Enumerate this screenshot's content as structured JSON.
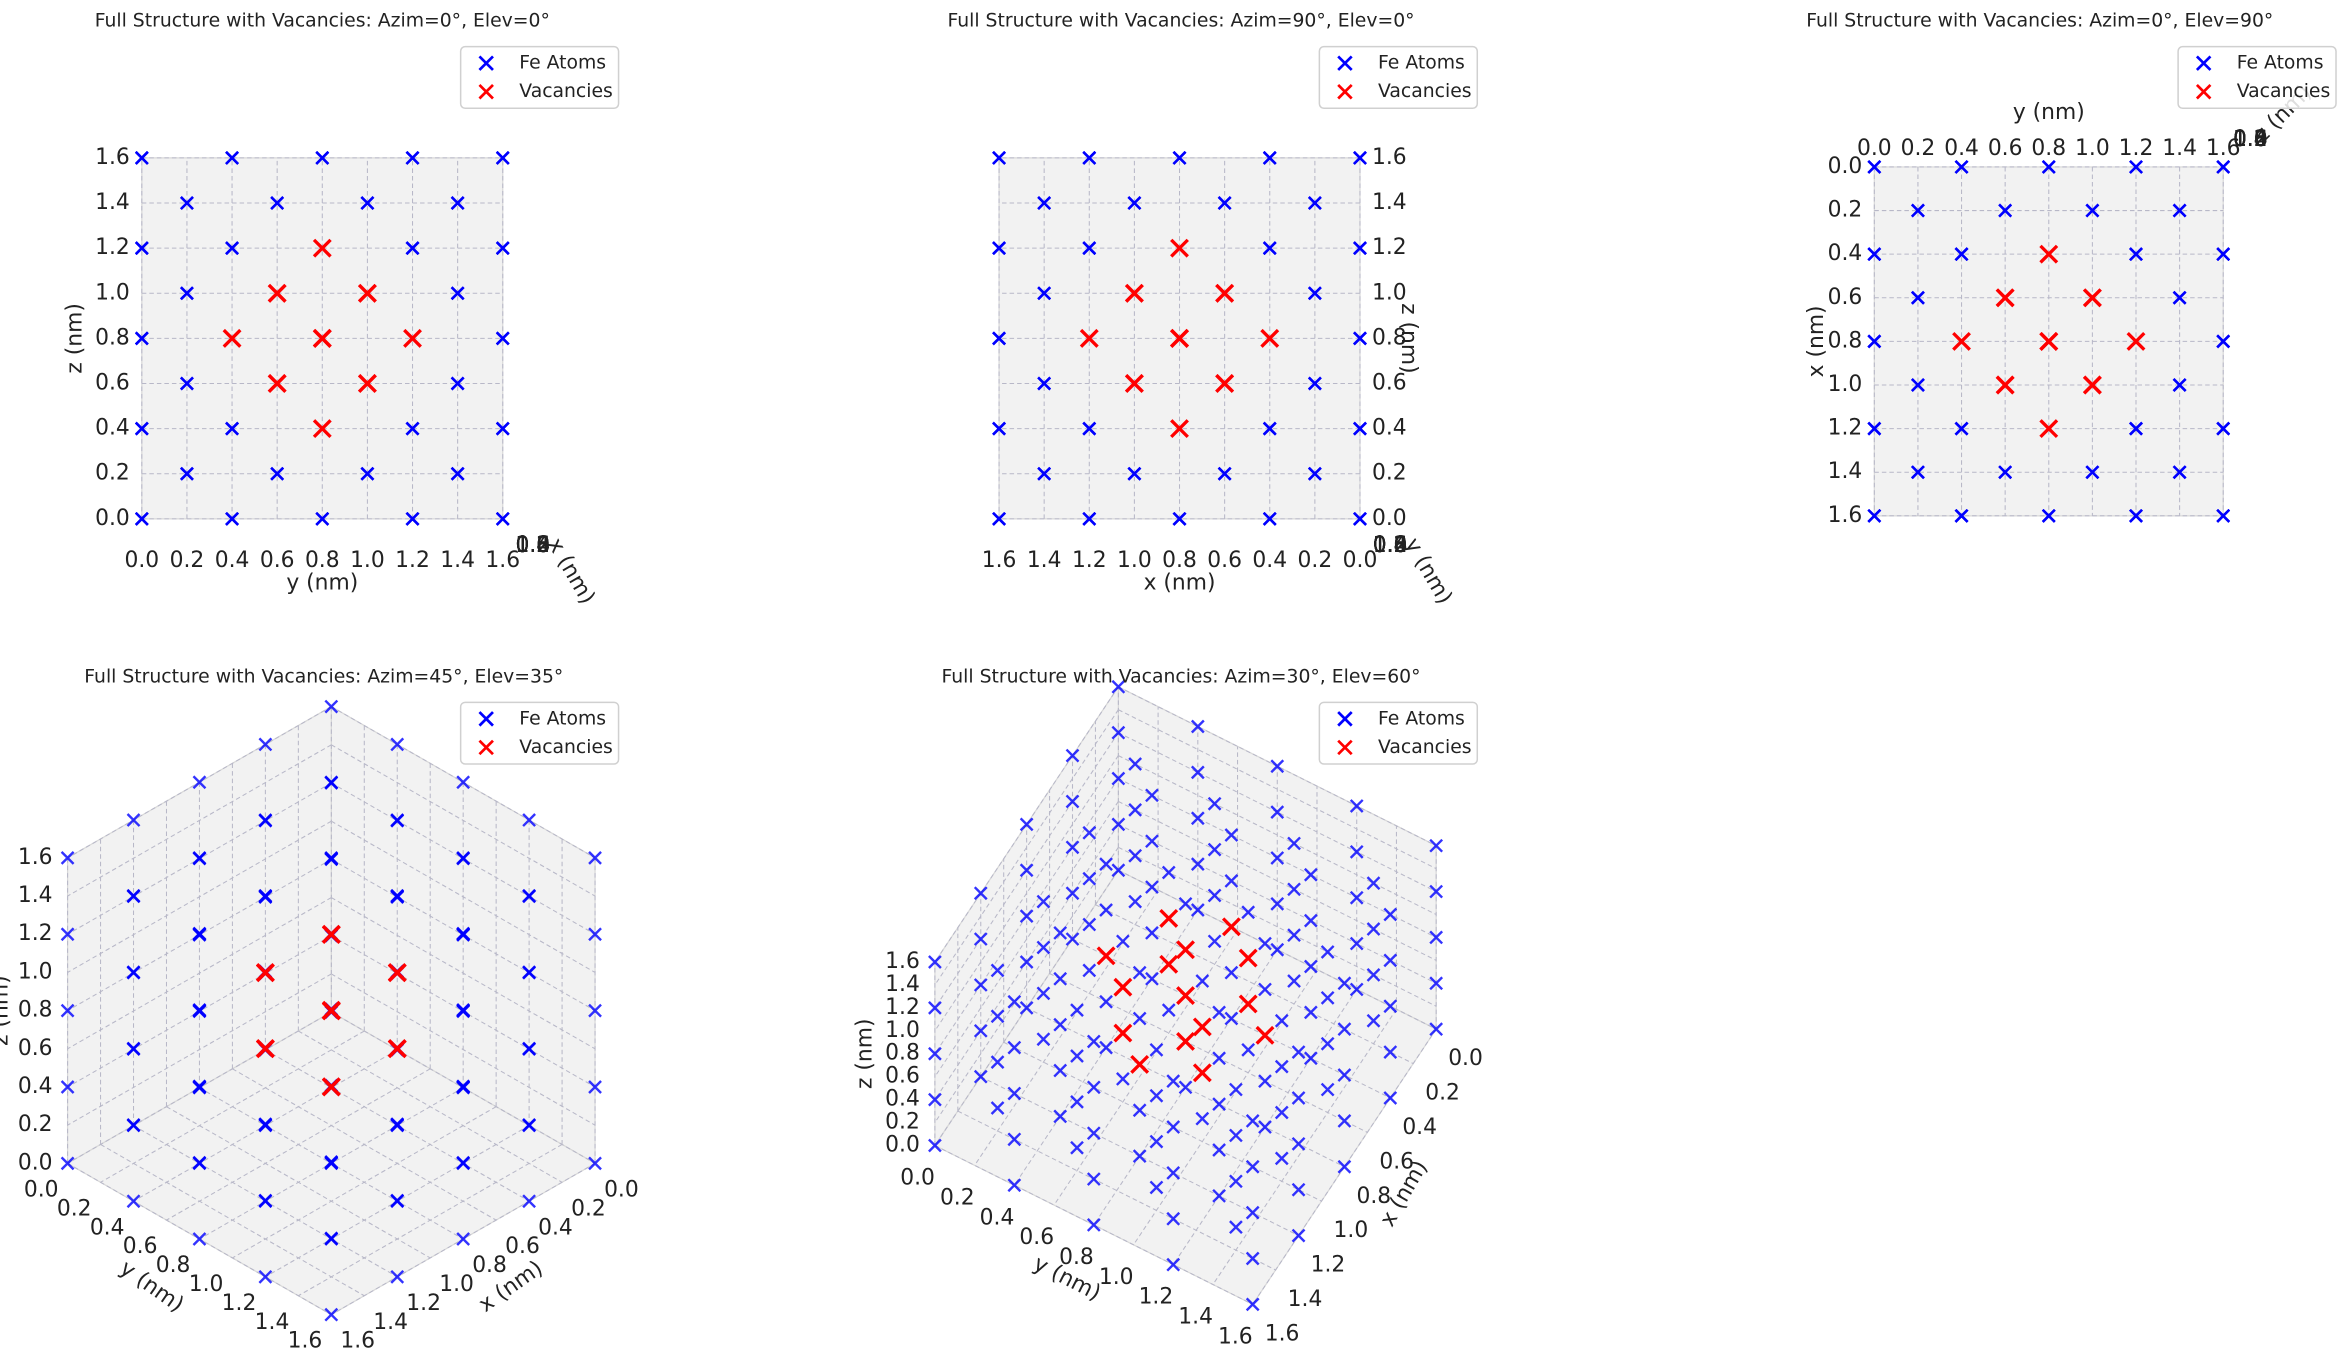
{
  "series": [
    {
      "name": "Fe Atoms",
      "color": "#0000ff",
      "points": [
        [
          0,
          0,
          0
        ],
        [
          0,
          0,
          0.4
        ],
        [
          0,
          0,
          0.8
        ],
        [
          0,
          0,
          1.2
        ],
        [
          0,
          0,
          1.6
        ],
        [
          0,
          0.4,
          0
        ],
        [
          0,
          0.4,
          0.4
        ],
        [
          0,
          0.4,
          0.8
        ],
        [
          0,
          0.4,
          1.2
        ],
        [
          0,
          0.4,
          1.6
        ],
        [
          0,
          0.8,
          0
        ],
        [
          0,
          0.8,
          0.4
        ],
        [
          0,
          0.8,
          0.8
        ],
        [
          0,
          0.8,
          1.2
        ],
        [
          0,
          0.8,
          1.6
        ],
        [
          0,
          1.2,
          0
        ],
        [
          0,
          1.2,
          0.4
        ],
        [
          0,
          1.2,
          0.8
        ],
        [
          0,
          1.2,
          1.2
        ],
        [
          0,
          1.2,
          1.6
        ],
        [
          0,
          1.6,
          0
        ],
        [
          0,
          1.6,
          0.4
        ],
        [
          0,
          1.6,
          0.8
        ],
        [
          0,
          1.6,
          1.2
        ],
        [
          0,
          1.6,
          1.6
        ],
        [
          0.4,
          0,
          0
        ],
        [
          0.4,
          0,
          0.4
        ],
        [
          0.4,
          0,
          0.8
        ],
        [
          0.4,
          0,
          1.2
        ],
        [
          0.4,
          0,
          1.6
        ],
        [
          0.4,
          0.4,
          0
        ],
        [
          0.4,
          0.4,
          0.4
        ],
        [
          0.4,
          0.4,
          0.8
        ],
        [
          0.4,
          0.4,
          1.2
        ],
        [
          0.4,
          0.4,
          1.6
        ],
        [
          0.4,
          0.8,
          0
        ],
        [
          0.4,
          0.8,
          0.4
        ],
        [
          0.4,
          0.8,
          1.2
        ],
        [
          0.4,
          0.8,
          1.6
        ],
        [
          0.4,
          1.2,
          0
        ],
        [
          0.4,
          1.2,
          0.4
        ],
        [
          0.4,
          1.2,
          0.8
        ],
        [
          0.4,
          1.2,
          1.2
        ],
        [
          0.4,
          1.2,
          1.6
        ],
        [
          0.4,
          1.6,
          0
        ],
        [
          0.4,
          1.6,
          0.4
        ],
        [
          0.4,
          1.6,
          0.8
        ],
        [
          0.4,
          1.6,
          1.2
        ],
        [
          0.4,
          1.6,
          1.6
        ],
        [
          0.8,
          0,
          0
        ],
        [
          0.8,
          0,
          0.4
        ],
        [
          0.8,
          0,
          0.8
        ],
        [
          0.8,
          0,
          1.2
        ],
        [
          0.8,
          0,
          1.6
        ],
        [
          0.8,
          0.4,
          0
        ],
        [
          0.8,
          0.4,
          0.4
        ],
        [
          0.8,
          0.4,
          1.2
        ],
        [
          0.8,
          0.4,
          1.6
        ],
        [
          0.8,
          0.8,
          0
        ],
        [
          0.8,
          0.8,
          1.6
        ],
        [
          0.8,
          1.2,
          0
        ],
        [
          0.8,
          1.2,
          0.4
        ],
        [
          0.8,
          1.2,
          1.2
        ],
        [
          0.8,
          1.2,
          1.6
        ],
        [
          0.8,
          1.6,
          0
        ],
        [
          0.8,
          1.6,
          0.4
        ],
        [
          0.8,
          1.6,
          0.8
        ],
        [
          0.8,
          1.6,
          1.2
        ],
        [
          0.8,
          1.6,
          1.6
        ],
        [
          1.2,
          0,
          0
        ],
        [
          1.2,
          0,
          0.4
        ],
        [
          1.2,
          0,
          0.8
        ],
        [
          1.2,
          0,
          1.2
        ],
        [
          1.2,
          0,
          1.6
        ],
        [
          1.2,
          0.4,
          0
        ],
        [
          1.2,
          0.4,
          0.4
        ],
        [
          1.2,
          0.4,
          0.8
        ],
        [
          1.2,
          0.4,
          1.2
        ],
        [
          1.2,
          0.4,
          1.6
        ],
        [
          1.2,
          0.8,
          0
        ],
        [
          1.2,
          0.8,
          0.4
        ],
        [
          1.2,
          0.8,
          1.2
        ],
        [
          1.2,
          0.8,
          1.6
        ],
        [
          1.2,
          1.2,
          0
        ],
        [
          1.2,
          1.2,
          0.4
        ],
        [
          1.2,
          1.2,
          0.8
        ],
        [
          1.2,
          1.2,
          1.2
        ],
        [
          1.2,
          1.2,
          1.6
        ],
        [
          1.2,
          1.6,
          0
        ],
        [
          1.2,
          1.6,
          0.4
        ],
        [
          1.2,
          1.6,
          0.8
        ],
        [
          1.2,
          1.6,
          1.2
        ],
        [
          1.2,
          1.6,
          1.6
        ],
        [
          1.6,
          0,
          0
        ],
        [
          1.6,
          0,
          0.4
        ],
        [
          1.6,
          0,
          0.8
        ],
        [
          1.6,
          0,
          1.2
        ],
        [
          1.6,
          0,
          1.6
        ],
        [
          1.6,
          0.4,
          0
        ],
        [
          1.6,
          0.4,
          0.4
        ],
        [
          1.6,
          0.4,
          0.8
        ],
        [
          1.6,
          0.4,
          1.2
        ],
        [
          1.6,
          0.4,
          1.6
        ],
        [
          1.6,
          0.8,
          0
        ],
        [
          1.6,
          0.8,
          0.4
        ],
        [
          1.6,
          0.8,
          0.8
        ],
        [
          1.6,
          0.8,
          1.2
        ],
        [
          1.6,
          0.8,
          1.6
        ],
        [
          1.6,
          1.2,
          0
        ],
        [
          1.6,
          1.2,
          0.4
        ],
        [
          1.6,
          1.2,
          0.8
        ],
        [
          1.6,
          1.2,
          1.2
        ],
        [
          1.6,
          1.2,
          1.6
        ],
        [
          1.6,
          1.6,
          0
        ],
        [
          1.6,
          1.6,
          0.4
        ],
        [
          1.6,
          1.6,
          0.8
        ],
        [
          1.6,
          1.6,
          1.2
        ],
        [
          1.6,
          1.6,
          1.6
        ],
        [
          0.2,
          0.2,
          0.2
        ],
        [
          0.2,
          0.2,
          0.6
        ],
        [
          0.2,
          0.2,
          1.0
        ],
        [
          0.2,
          0.2,
          1.4
        ],
        [
          0.2,
          0.6,
          0.2
        ],
        [
          0.2,
          0.6,
          0.6
        ],
        [
          0.2,
          0.6,
          1.0
        ],
        [
          0.2,
          0.6,
          1.4
        ],
        [
          0.2,
          1.0,
          0.2
        ],
        [
          0.2,
          1.0,
          0.6
        ],
        [
          0.2,
          1.0,
          1.0
        ],
        [
          0.2,
          1.0,
          1.4
        ],
        [
          0.2,
          1.4,
          0.2
        ],
        [
          0.2,
          1.4,
          0.6
        ],
        [
          0.2,
          1.4,
          1.0
        ],
        [
          0.2,
          1.4,
          1.4
        ],
        [
          0.6,
          0.2,
          0.2
        ],
        [
          0.6,
          0.2,
          0.6
        ],
        [
          0.6,
          0.2,
          1.0
        ],
        [
          0.6,
          0.2,
          1.4
        ],
        [
          0.6,
          0.6,
          0.2
        ],
        [
          0.6,
          0.6,
          1.4
        ],
        [
          0.6,
          1.0,
          0.2
        ],
        [
          0.6,
          1.0,
          1.4
        ],
        [
          0.6,
          1.4,
          0.2
        ],
        [
          0.6,
          1.4,
          0.6
        ],
        [
          0.6,
          1.4,
          1.0
        ],
        [
          0.6,
          1.4,
          1.4
        ],
        [
          1.0,
          0.2,
          0.2
        ],
        [
          1.0,
          0.2,
          0.6
        ],
        [
          1.0,
          0.2,
          1.0
        ],
        [
          1.0,
          0.2,
          1.4
        ],
        [
          1.0,
          0.6,
          0.2
        ],
        [
          1.0,
          0.6,
          1.4
        ],
        [
          1.0,
          1.0,
          0.2
        ],
        [
          1.0,
          1.0,
          1.4
        ],
        [
          1.0,
          1.4,
          0.2
        ],
        [
          1.0,
          1.4,
          0.6
        ],
        [
          1.0,
          1.4,
          1.0
        ],
        [
          1.0,
          1.4,
          1.4
        ],
        [
          1.4,
          0.2,
          0.2
        ],
        [
          1.4,
          0.2,
          0.6
        ],
        [
          1.4,
          0.2,
          1.0
        ],
        [
          1.4,
          0.2,
          1.4
        ],
        [
          1.4,
          0.6,
          0.2
        ],
        [
          1.4,
          0.6,
          0.6
        ],
        [
          1.4,
          0.6,
          1.0
        ],
        [
          1.4,
          0.6,
          1.4
        ],
        [
          1.4,
          1.0,
          0.2
        ],
        [
          1.4,
          1.0,
          0.6
        ],
        [
          1.4,
          1.0,
          1.0
        ],
        [
          1.4,
          1.0,
          1.4
        ],
        [
          1.4,
          1.4,
          0.2
        ],
        [
          1.4,
          1.4,
          0.6
        ],
        [
          1.4,
          1.4,
          1.0
        ],
        [
          1.4,
          1.4,
          1.4
        ]
      ]
    },
    {
      "name": "Vacancies",
      "color": "#ff0000",
      "points": [
        [
          0.4,
          0.8,
          0.8
        ],
        [
          0.8,
          0.4,
          0.8
        ],
        [
          0.8,
          0.8,
          0.4
        ],
        [
          0.8,
          0.8,
          0.8
        ],
        [
          0.8,
          0.8,
          1.2
        ],
        [
          0.8,
          1.2,
          0.8
        ],
        [
          1.2,
          0.8,
          0.8
        ],
        [
          0.6,
          0.6,
          0.6
        ],
        [
          0.6,
          0.6,
          1.0
        ],
        [
          0.6,
          1.0,
          0.6
        ],
        [
          0.6,
          1.0,
          1.0
        ],
        [
          1.0,
          0.6,
          0.6
        ],
        [
          1.0,
          0.6,
          1.0
        ],
        [
          1.0,
          1.0,
          0.6
        ],
        [
          1.0,
          1.0,
          1.0
        ]
      ]
    }
  ],
  "chart_data": [
    {
      "type": "scatter3d",
      "title": "Full Structure with Vacancies: Azim=0°, Elev=0°",
      "azim": 0,
      "elev": 0,
      "xlabel": "x (nm)",
      "ylabel": "y (nm)",
      "zlabel": "z (nm)",
      "legend": "upper right",
      "grid": true,
      "xlim": [
        0,
        1.6
      ],
      "ylim": [
        0,
        1.6
      ],
      "zlim": [
        0,
        1.6
      ],
      "xticks": [
        {
          "value": 0,
          "label": "0.0"
        },
        0.2,
        0.4,
        0.6,
        0.8,
        {
          "value": 1,
          "label": "1.0"
        },
        1.2,
        1.4,
        1.6
      ],
      "yticks": [
        {
          "value": 0,
          "label": "0.0"
        },
        0.2,
        0.4,
        0.6,
        0.8,
        {
          "value": 1,
          "label": "1.0"
        },
        1.2,
        1.4,
        1.6
      ],
      "zticks": [
        {
          "value": 0,
          "label": "0.0"
        },
        0.2,
        0.4,
        0.6,
        0.8,
        {
          "value": 1,
          "label": "1.0"
        },
        1.2,
        1.4,
        1.6
      ]
    },
    {
      "type": "scatter3d",
      "title": "Full Structure with Vacancies: Azim=90°, Elev=0°",
      "azim": 90,
      "elev": 0,
      "xlabel": "x (nm)",
      "ylabel": "y (nm)",
      "zlabel": "z (nm)",
      "legend": "upper right",
      "grid": true,
      "xlim": [
        0,
        1.6
      ],
      "ylim": [
        0,
        1.6
      ],
      "zlim": [
        0,
        1.6
      ],
      "xticks": [
        {
          "value": 0,
          "label": "0.0"
        },
        0.2,
        0.4,
        0.6,
        0.8,
        {
          "value": 1,
          "label": "1.0"
        },
        1.2,
        1.4,
        1.6
      ],
      "yticks": [
        {
          "value": 0,
          "label": "0.0"
        },
        0.2,
        0.4,
        0.6,
        0.8,
        {
          "value": 1,
          "label": "1.0"
        },
        1.2,
        1.4,
        1.6
      ],
      "zticks": [
        {
          "value": 0,
          "label": "0.0"
        },
        0.2,
        0.4,
        0.6,
        0.8,
        {
          "value": 1,
          "label": "1.0"
        },
        1.2,
        1.4,
        1.6
      ]
    },
    {
      "type": "scatter3d",
      "title": "Full Structure with Vacancies: Azim=0°, Elev=90°",
      "azim": 0,
      "elev": 90,
      "xlabel": "x (nm)",
      "ylabel": "y (nm)",
      "zlabel": "z (nm)",
      "legend": "upper right",
      "grid": true,
      "xlim": [
        0,
        1.6
      ],
      "ylim": [
        0,
        1.6
      ],
      "zlim": [
        0,
        1.6
      ],
      "xticks": [
        {
          "value": 0,
          "label": "0.0"
        },
        0.2,
        0.4,
        0.6,
        0.8,
        {
          "value": 1,
          "label": "1.0"
        },
        1.2,
        1.4,
        1.6
      ],
      "yticks": [
        {
          "value": 0,
          "label": "0.0"
        },
        0.2,
        0.4,
        0.6,
        0.8,
        {
          "value": 1,
          "label": "1.0"
        },
        1.2,
        1.4,
        1.6
      ],
      "zticks": [
        {
          "value": 0,
          "label": "0.0"
        },
        0.2,
        0.4,
        0.6,
        0.8,
        {
          "value": 1,
          "label": "1.0"
        },
        1.2,
        1.4,
        1.6
      ]
    },
    {
      "type": "scatter3d",
      "title": "Full Structure with Vacancies: Azim=45°, Elev=35°",
      "azim": 45,
      "elev": 35,
      "xlabel": "x (nm)",
      "ylabel": "y (nm)",
      "zlabel": "z (nm)",
      "legend": "upper right",
      "grid": true,
      "xlim": [
        0,
        1.6
      ],
      "ylim": [
        0,
        1.6
      ],
      "zlim": [
        0,
        1.6
      ],
      "xticks": [
        {
          "value": 0,
          "label": "0.0"
        },
        0.2,
        0.4,
        0.6,
        0.8,
        {
          "value": 1,
          "label": "1.0"
        },
        1.2,
        1.4,
        1.6
      ],
      "yticks": [
        {
          "value": 0,
          "label": "0.0"
        },
        0.2,
        0.4,
        0.6,
        0.8,
        {
          "value": 1,
          "label": "1.0"
        },
        1.2,
        1.4,
        1.6
      ],
      "zticks": [
        {
          "value": 0,
          "label": "0.0"
        },
        0.2,
        0.4,
        0.6,
        0.8,
        {
          "value": 1,
          "label": "1.0"
        },
        1.2,
        1.4,
        1.6
      ]
    },
    {
      "type": "scatter3d",
      "title": "Full Structure with Vacancies: Azim=30°, Elev=60°",
      "azim": 30,
      "elev": 60,
      "xlabel": "x (nm)",
      "ylabel": "y (nm)",
      "zlabel": "z (nm)",
      "legend": "upper right",
      "grid": true,
      "xlim": [
        0,
        1.6
      ],
      "ylim": [
        0,
        1.6
      ],
      "zlim": [
        0,
        1.6
      ],
      "xticks": [
        {
          "value": 0,
          "label": "0.0"
        },
        0.2,
        0.4,
        0.6,
        0.8,
        {
          "value": 1,
          "label": "1.0"
        },
        1.2,
        1.4,
        1.6
      ],
      "yticks": [
        {
          "value": 0,
          "label": "0.0"
        },
        0.2,
        0.4,
        0.6,
        0.8,
        {
          "value": 1,
          "label": "1.0"
        },
        1.2,
        1.4,
        1.6
      ],
      "zticks": [
        {
          "value": 0,
          "label": "0.0"
        },
        0.2,
        0.4,
        0.6,
        0.8,
        {
          "value": 1,
          "label": "1.0"
        },
        1.2,
        1.4,
        1.6
      ]
    }
  ]
}
